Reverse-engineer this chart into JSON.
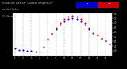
{
  "title_line1": "Milwaukee Weather  Outdoor Temperature",
  "title_line2": "vs Heat Index",
  "title_line3": "(24 Hours)",
  "legend_colors": [
    "#0000ff",
    "#ff0000"
  ],
  "x_hours": [
    1,
    2,
    3,
    4,
    5,
    6,
    7,
    8,
    9,
    10,
    11,
    12,
    13,
    14,
    15,
    16,
    17,
    18,
    19,
    20,
    21,
    22,
    23,
    24
  ],
  "outdoor_temp": [
    42,
    41,
    41,
    40,
    40,
    39,
    39,
    44,
    52,
    58,
    63,
    68,
    72,
    74,
    75,
    74,
    72,
    68,
    63,
    59,
    56,
    53,
    50,
    47
  ],
  "heat_index": [
    null,
    null,
    null,
    null,
    null,
    null,
    null,
    null,
    53,
    59,
    65,
    70,
    74,
    77,
    78,
    77,
    74,
    70,
    65,
    60,
    57,
    54,
    51,
    48
  ],
  "ylim": [
    35,
    80
  ],
  "xlim": [
    0.5,
    24.5
  ],
  "bg_color": "#ffffff",
  "outer_bg": "#000000",
  "title_color": "#c0c0c0",
  "axis_color": "#c0c0c0",
  "grid_color": "#808080",
  "dot_size": 2.2,
  "yticks": [
    40,
    45,
    50,
    55,
    60,
    65,
    70,
    75,
    80
  ],
  "xticks_labels": [
    "1",
    "",
    "3",
    "",
    "5",
    "",
    "7",
    "",
    "9",
    "",
    "11",
    "",
    "13",
    "",
    "15",
    "",
    "17",
    "",
    "19",
    "",
    "21",
    "",
    "23",
    ""
  ]
}
